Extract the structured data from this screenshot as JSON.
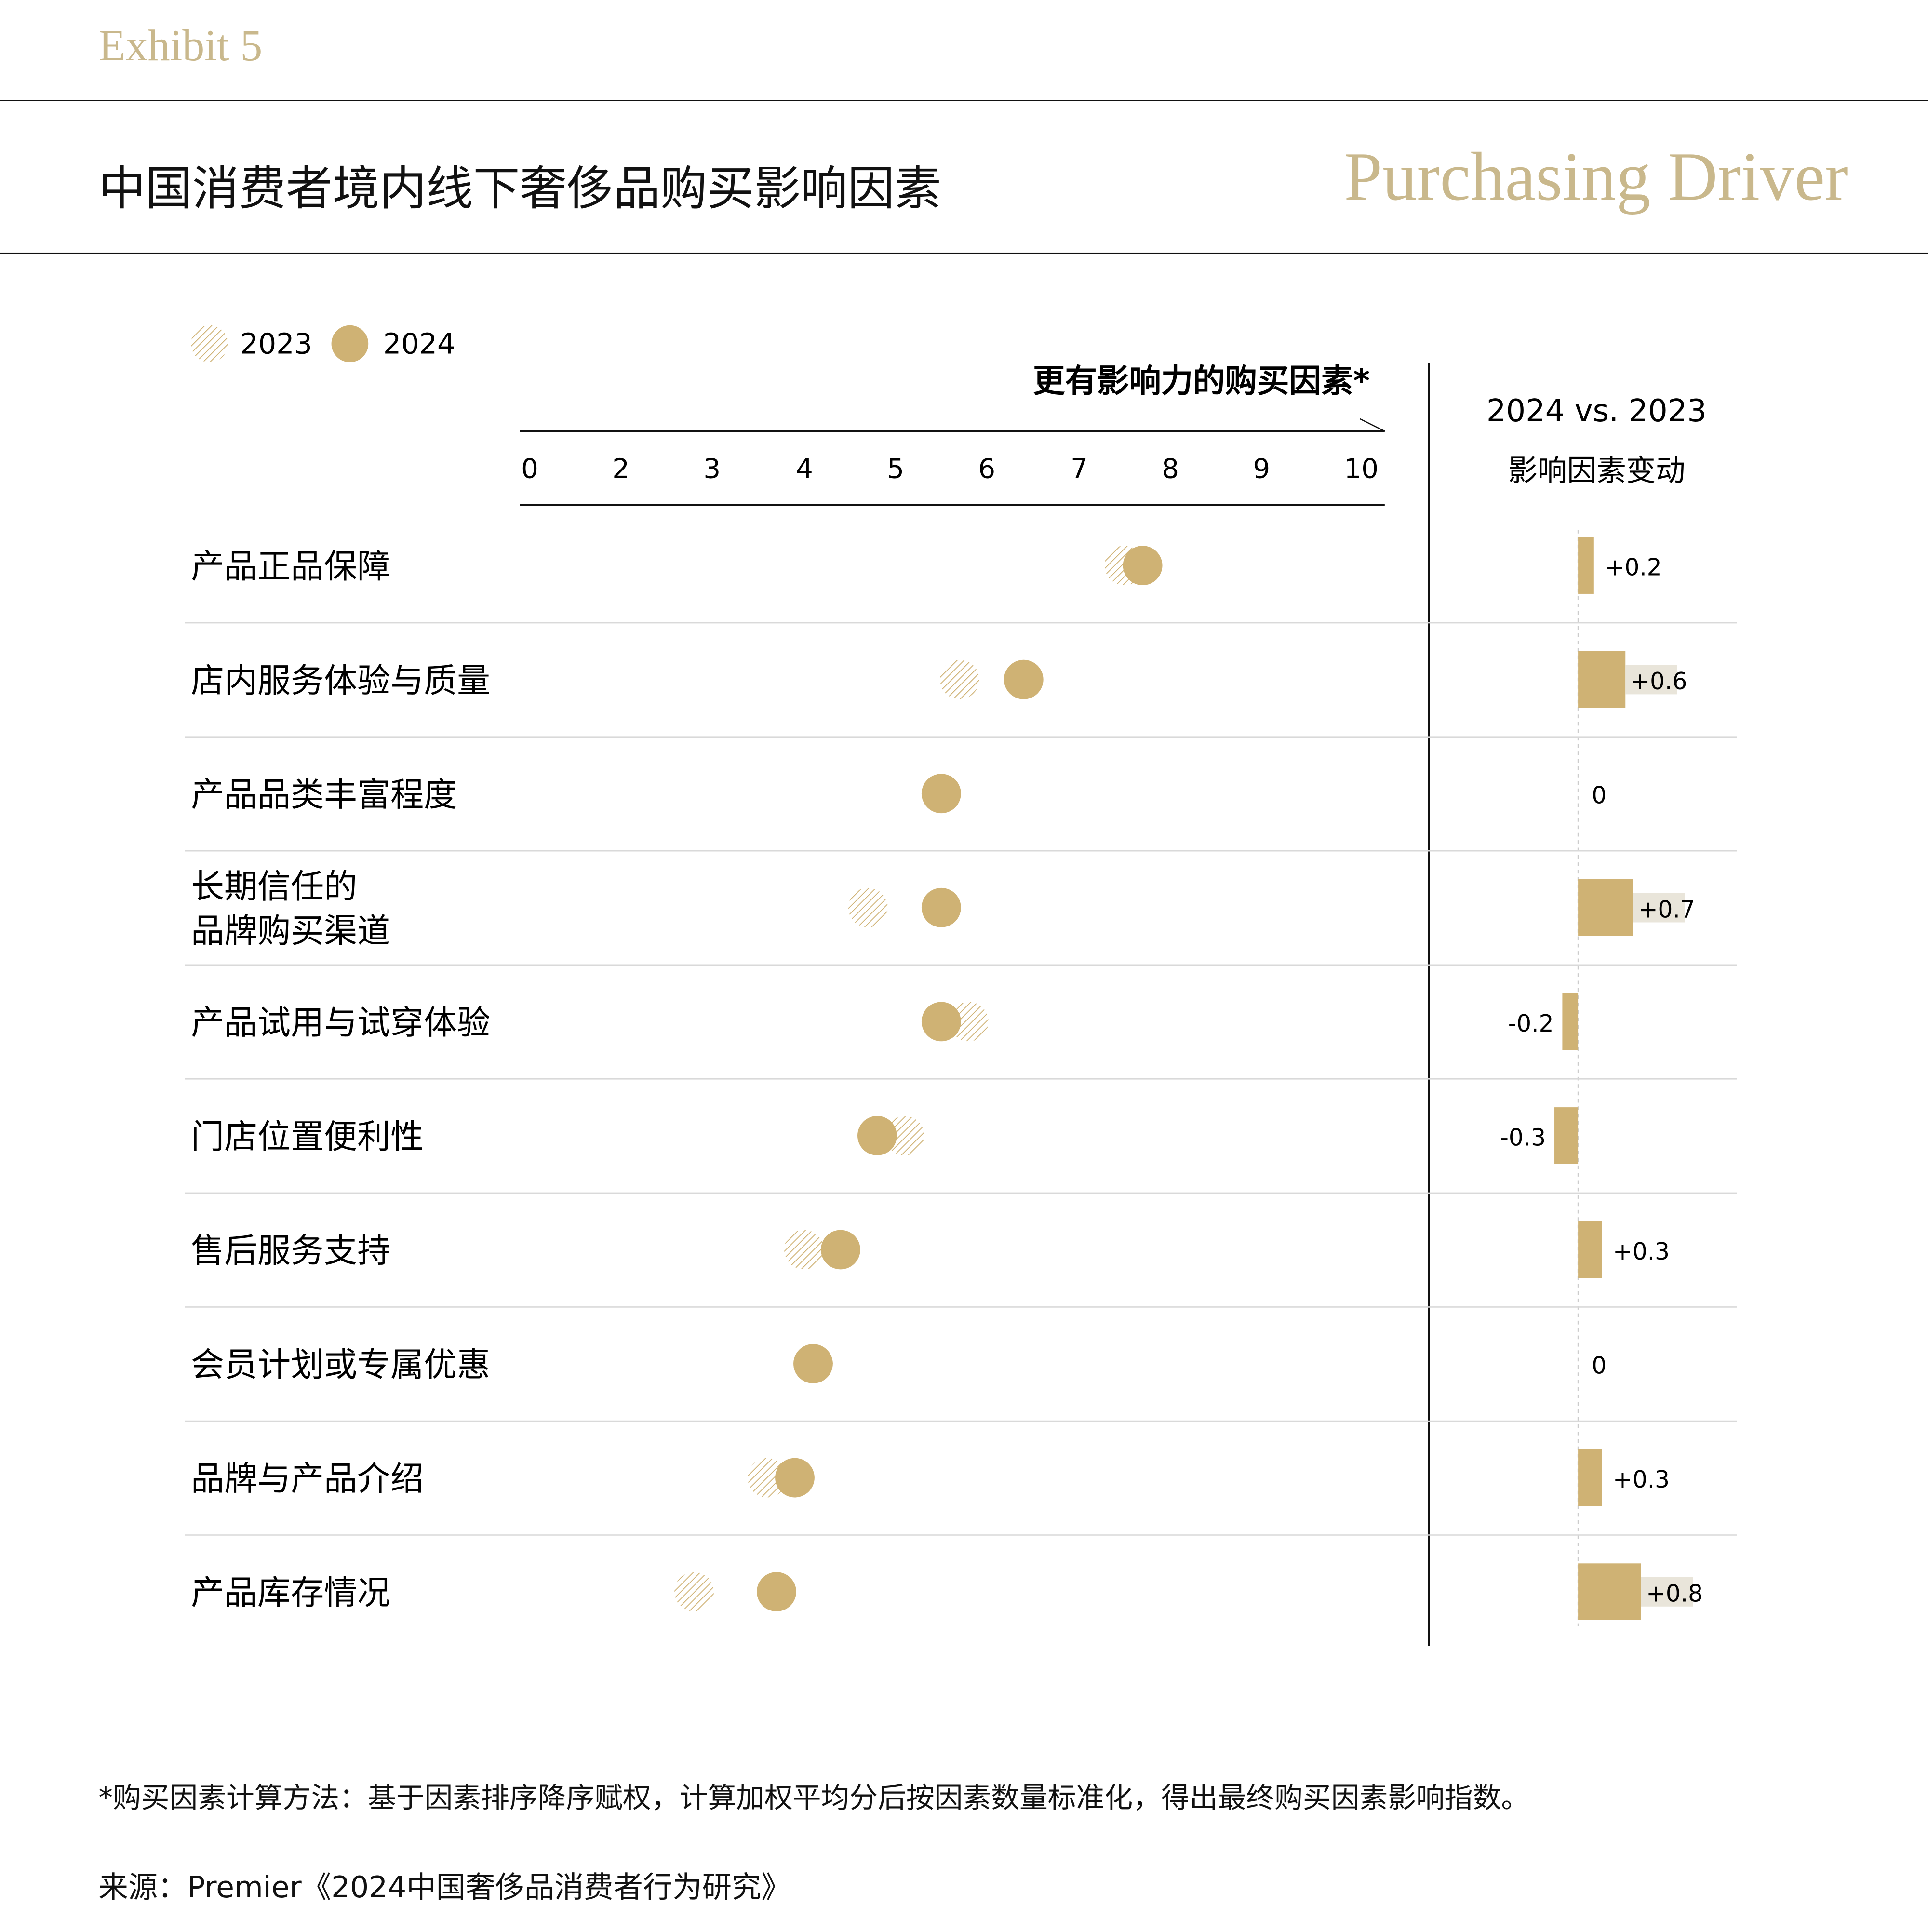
{
  "header": {
    "exhibit": "Exhibit 5",
    "title": "中国消费者境内线下奢侈品购买影响因素",
    "section": "Purchasing Driver"
  },
  "colors": {
    "gold": "#cfb274",
    "label_bg": "#e9e5da",
    "text": "#111111",
    "grid": "#d9d9d9"
  },
  "chart_data": {
    "type": "dot-plot-with-bar",
    "legend": [
      {
        "name": "2023",
        "style": "hatched"
      },
      {
        "name": "2024",
        "style": "solid"
      }
    ],
    "legend_placement": "top-left",
    "xlabel": "更有影响力的购买因素*",
    "x_ticks": [
      "0",
      "2",
      "3",
      "4",
      "5",
      "6",
      "7",
      "8",
      "9",
      "10"
    ],
    "right_title": "2024 vs. 2023",
    "right_subtitle": "影响因素变动",
    "categories": [
      "产品正品保障",
      "店内服务体验与质量",
      "产品品类丰富程度",
      "长期信任的\n品牌购买渠道",
      "产品试用与试穿体验",
      "门店位置便利性",
      "售后服务支持",
      "会员计划或专属优惠",
      "品牌与产品介绍",
      "产品库存情况"
    ],
    "series": [
      {
        "name": "2023",
        "values": [
          7.5,
          5.7,
          5.5,
          4.7,
          5.8,
          5.1,
          4.0,
          4.1,
          3.6,
          2.8
        ]
      },
      {
        "name": "2024",
        "values": [
          7.7,
          6.4,
          5.5,
          5.5,
          5.5,
          4.8,
          4.4,
          4.1,
          3.9,
          3.7
        ]
      }
    ],
    "change": [
      0.2,
      0.6,
      0,
      0.7,
      -0.2,
      -0.3,
      0.3,
      0,
      0.3,
      0.8
    ],
    "change_labels": [
      "+0.2",
      "+0.6",
      "0",
      "+0.7",
      "-0.2",
      "-0.3",
      "+0.3",
      "0",
      "+0.3",
      "+0.8"
    ]
  },
  "footer": {
    "note": "*购买因素计算方法：基于因素排序降序赋权，计算加权平均分后按因素数量标准化，得出最终购买因素影响指数。",
    "source": "来源：Premier《2024中国奢侈品消费者行为研究》"
  }
}
